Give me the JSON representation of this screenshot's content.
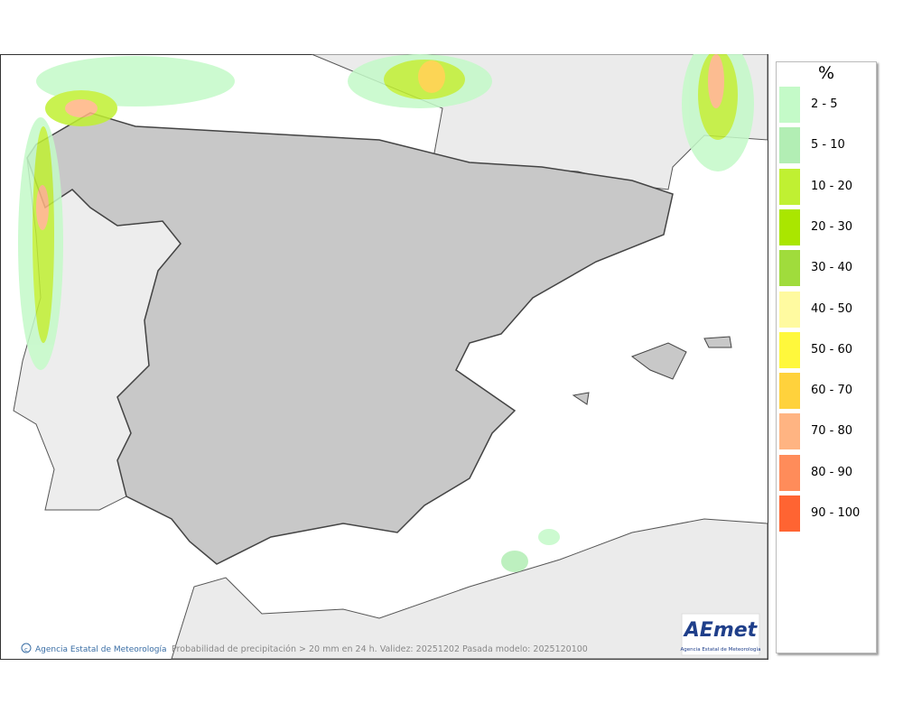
{
  "legend": {
    "title": "%",
    "items": [
      {
        "label": "2 - 5",
        "color": "#c4fac8"
      },
      {
        "label": "5 - 10",
        "color": "#b2eeb4"
      },
      {
        "label": "10 - 20",
        "color": "#c0f032"
      },
      {
        "label": "20 - 30",
        "color": "#aae600"
      },
      {
        "label": "30 - 40",
        "color": "#a0dc3c"
      },
      {
        "label": "40 - 50",
        "color": "#fffaa0"
      },
      {
        "label": "50 - 60",
        "color": "#fff83c"
      },
      {
        "label": "60 - 70",
        "color": "#ffd23c"
      },
      {
        "label": "70 - 80",
        "color": "#ffb482"
      },
      {
        "label": "80 - 90",
        "color": "#ff8c5a"
      },
      {
        "label": "90 - 100",
        "color": "#ff6432"
      }
    ]
  },
  "footer": {
    "credit": "Agencia Estatal de Meteorología",
    "caption": "Probabilidad de precipitación > 20 mm en 24 h. Validez: 20251202 Pasada modelo: 2025120100"
  },
  "logo": {
    "name": "AEmet",
    "subtitle": "Agencia Estatal de Meteorología"
  }
}
